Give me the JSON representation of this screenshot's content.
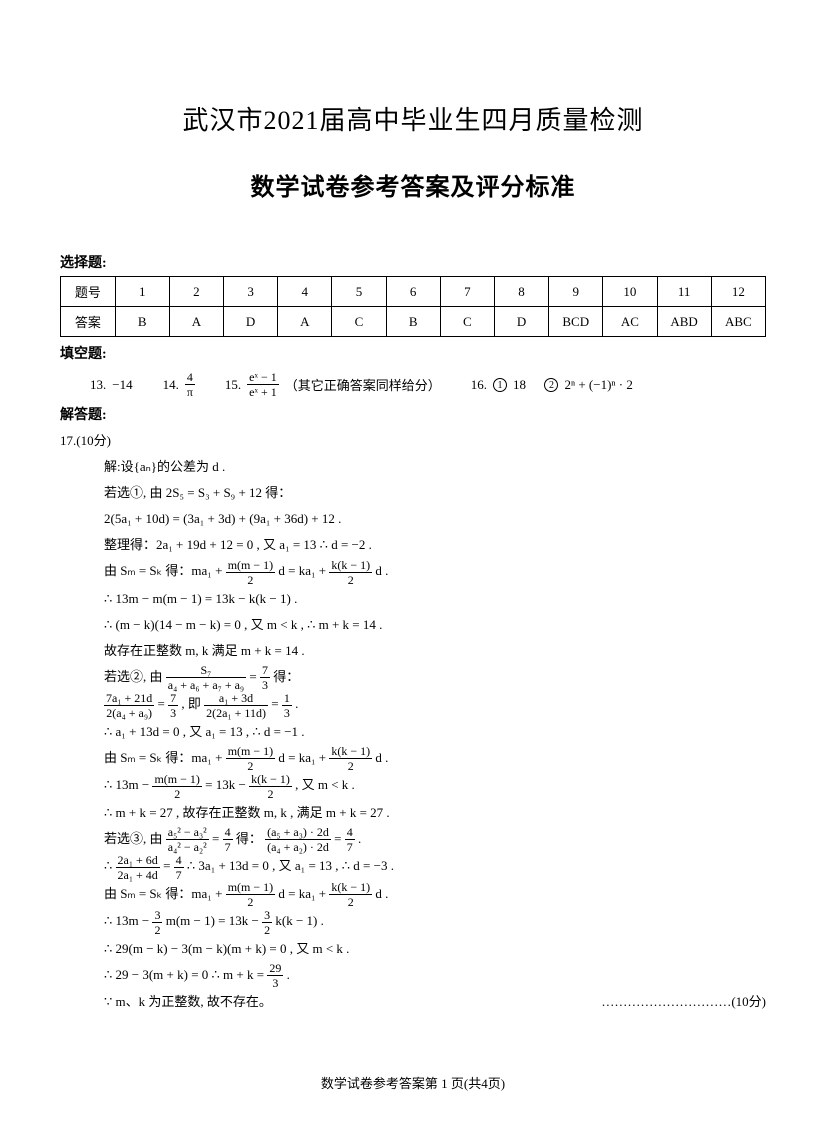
{
  "title1": "武汉市2021届高中毕业生四月质量检测",
  "title2": "数学试卷参考答案及评分标准",
  "sections": {
    "mcq_label": "选择题:",
    "fill_label": "填空题:",
    "solve_label": "解答题:"
  },
  "mcq_table": {
    "row1_label": "题号",
    "row2_label": "答案",
    "numbers": [
      "1",
      "2",
      "3",
      "4",
      "5",
      "6",
      "7",
      "8",
      "9",
      "10",
      "11",
      "12"
    ],
    "answers": [
      "B",
      "A",
      "D",
      "A",
      "C",
      "B",
      "C",
      "D",
      "BCD",
      "AC",
      "ABD",
      "ABC"
    ]
  },
  "fill": {
    "q13_num": "13.",
    "q13_ans": "−14",
    "q14_num": "14.",
    "q14_frac_num": "4",
    "q14_frac_den": "π",
    "q15_num": "15.",
    "q15_frac_num": "eˣ − 1",
    "q15_frac_den": "eˣ + 1",
    "q15_note": "（其它正确答案同样给分）",
    "q16_num": "16.",
    "q16_p1_mark": "1",
    "q16_p1_ans": "18",
    "q16_p2_mark": "2",
    "q16_p2_ans": "2ⁿ + (−1)ⁿ · 2"
  },
  "q17": {
    "header": "17.(10分)",
    "l1": "解:设{aₙ}的公差为 d .",
    "l2": "若选①, 由 2S₅ = S₃ + S₉ + 12 得：",
    "l3": "2(5a₁ + 10d) = (3a₁ + 3d) + (9a₁ + 36d) + 12 .",
    "l4": "整理得：2a₁ + 19d + 12 = 0 , 又 a₁ = 13     ∴ d = −2 .",
    "l5a": "由 Sₘ = Sₖ 得：ma₁ + ",
    "l5_f1n": "m(m − 1)",
    "l5_f1d": "2",
    "l5b": "d = ka₁ + ",
    "l5_f2n": "k(k − 1)",
    "l5_f2d": "2",
    "l5c": "d .",
    "l6": "∴ 13m − m(m − 1) = 13k − k(k − 1) .",
    "l7": "∴ (m − k)(14 − m − k) = 0 , 又 m < k , ∴ m + k = 14 .",
    "l8": "故存在正整数 m, k 满足 m + k = 14 .",
    "l9a": "若选②, 由 ",
    "l9_f1n": "S₇",
    "l9_f1d": "a₄ + a₆ + a₇ + a₉",
    "l9b": " = ",
    "l9_f2n": "7",
    "l9_f2d": "3",
    "l9c": "得：",
    "l10_f1n": "7a₁ + 21d",
    "l10_f1d": "2(a₄ + a₉)",
    "l10a": " = ",
    "l10_f2n": "7",
    "l10_f2d": "3",
    "l10b": " , 即 ",
    "l10_f3n": "a₁ + 3d",
    "l10_f3d": "2(2a₁ + 11d)",
    "l10c": " = ",
    "l10_f4n": "1",
    "l10_f4d": "3",
    "l10d": " .",
    "l11": "∴ a₁ + 13d = 0 , 又 a₁ = 13 , ∴ d = −1 .",
    "l12a": "由 Sₘ = Sₖ 得：ma₁ + ",
    "l12_f1n": "m(m − 1)",
    "l12_f1d": "2",
    "l12b": "d = ka₁ + ",
    "l12_f2n": "k(k − 1)",
    "l12_f2d": "2",
    "l12c": "d .",
    "l13a": "∴ 13m − ",
    "l13_f1n": "m(m − 1)",
    "l13_f1d": "2",
    "l13b": " = 13k − ",
    "l13_f2n": "k(k − 1)",
    "l13_f2d": "2",
    "l13c": " , 又 m < k .",
    "l14": "∴ m + k = 27 , 故存在正整数 m, k , 满足 m + k = 27 .",
    "l15a": "若选③, 由 ",
    "l15_f1n": "a₅² − a₃²",
    "l15_f1d": "a₄² − a₂²",
    "l15b": " = ",
    "l15_f2n": "4",
    "l15_f2d": "7",
    "l15c": " 得：",
    "l15_f3n": "(a₅ + a₃) · 2d",
    "l15_f3d": "(a₄ + a₂) · 2d",
    "l15d": " = ",
    "l15_f4n": "4",
    "l15_f4d": "7",
    "l15e": " .",
    "l16a": "∴ ",
    "l16_f1n": "2a₁ + 6d",
    "l16_f1d": "2a₁ + 4d",
    "l16b": " = ",
    "l16_f2n": "4",
    "l16_f2d": "7",
    "l16c": "   ∴ 3a₁ + 13d = 0 , 又 a₁ = 13 , ∴ d = −3 .",
    "l17a": "由 Sₘ = Sₖ 得：ma₁ + ",
    "l17_f1n": "m(m − 1)",
    "l17_f1d": "2",
    "l17b": "d = ka₁ + ",
    "l17_f2n": "k(k − 1)",
    "l17_f2d": "2",
    "l17c": "d .",
    "l18a": "∴ 13m − ",
    "l18_f1n": "3",
    "l18_f1d": "2",
    "l18b": "m(m − 1) = 13k − ",
    "l18_f2n": "3",
    "l18_f2d": "2",
    "l18c": "k(k − 1) .",
    "l19": "∴ 29(m − k) − 3(m − k)(m + k) = 0 , 又 m < k .",
    "l20a": "∴ 29 − 3(m + k) = 0   ∴ m + k = ",
    "l20_fn": "29",
    "l20_fd": "3",
    "l20b": " .",
    "l21": "∵ m、k 为正整数, 故不存在。",
    "score": "…………………………(10分)"
  },
  "footer": "数学试卷参考答案第 1 页(共4页)"
}
